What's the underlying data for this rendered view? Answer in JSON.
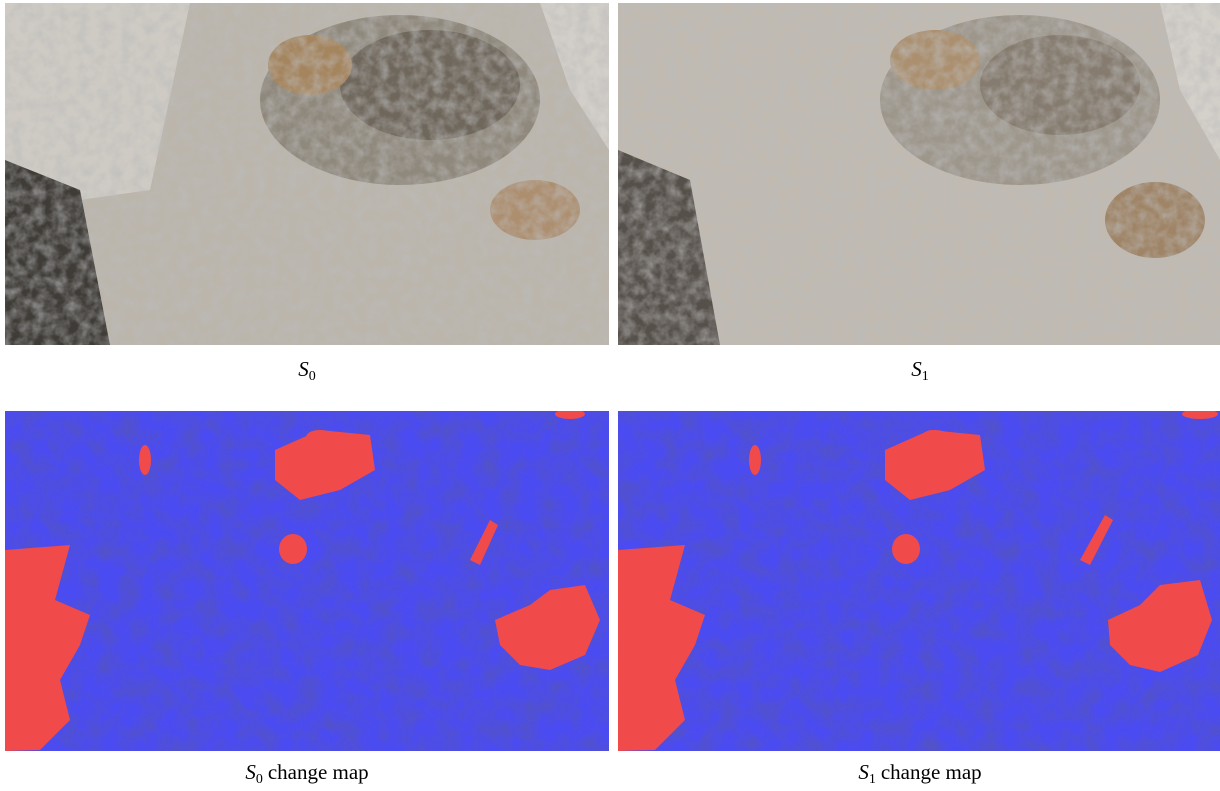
{
  "panels": [
    {
      "caption": {
        "symbol": "S",
        "subscript": "0"
      }
    },
    {
      "caption": {
        "symbol": "S",
        "subscript": "1"
      }
    },
    {
      "caption": {
        "symbol": "S",
        "subscript": "0",
        "suffix": "change map"
      }
    },
    {
      "caption": {
        "symbol": "S",
        "subscript": "1",
        "suffix": "change map"
      }
    }
  ]
}
